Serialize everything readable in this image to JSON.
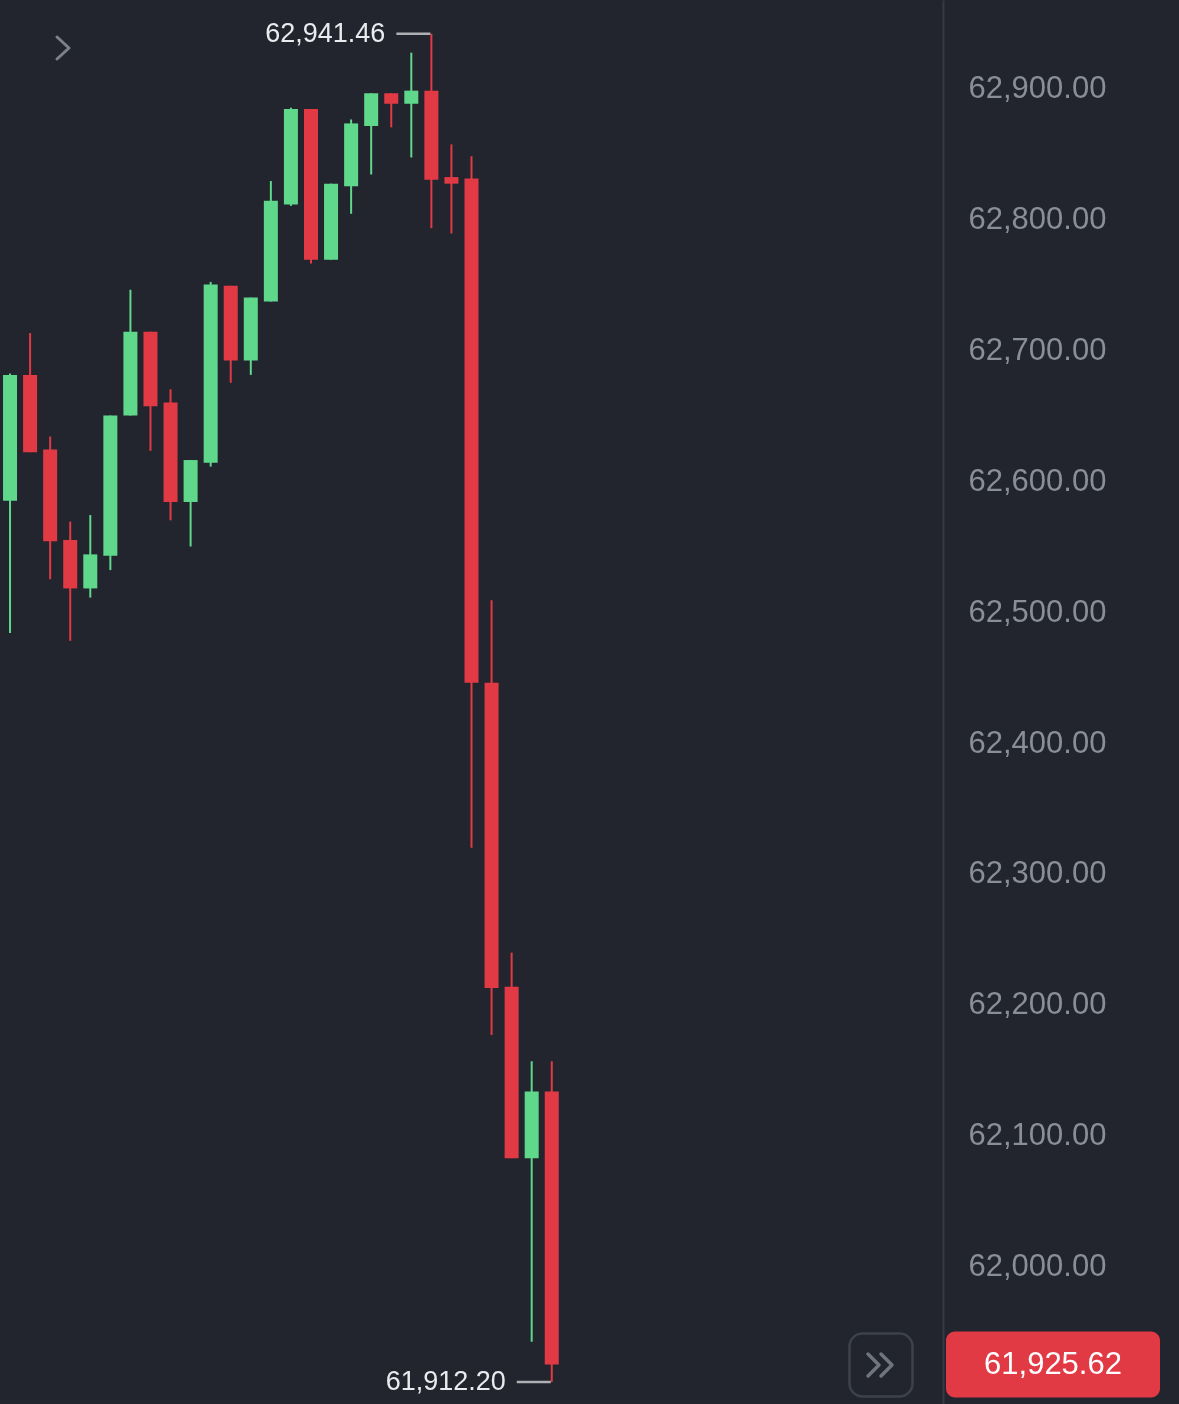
{
  "chart_data": {
    "type": "candlestick",
    "categories": [
      null,
      null,
      null,
      null,
      null,
      null,
      null,
      null,
      null,
      null,
      null,
      null,
      null,
      null,
      null,
      null,
      null,
      null,
      null,
      null,
      null,
      null,
      null,
      null,
      null,
      null,
      null,
      null,
      null,
      null,
      null,
      null,
      null,
      null,
      null,
      null,
      null,
      null,
      null,
      null,
      null,
      null,
      null,
      null,
      null,
      null,
      null
    ],
    "ohlc": [
      [
        62585,
        62682,
        62484,
        62681
      ],
      [
        62681,
        62713,
        62622,
        62622
      ],
      [
        62624,
        62634,
        62525,
        62554
      ],
      [
        62555,
        62569,
        62478,
        62518
      ],
      [
        62518,
        62574,
        62511,
        62544
      ],
      [
        62543,
        62650,
        62532,
        62650
      ],
      [
        62650,
        62746,
        62650,
        62714
      ],
      [
        62714,
        62714,
        62623,
        62657
      ],
      [
        62660,
        62670,
        62570,
        62584
      ],
      [
        62584,
        62616,
        62550,
        62616
      ],
      [
        62614,
        62752,
        62611,
        62750
      ],
      [
        62749,
        62749,
        62675,
        62692
      ],
      [
        62692,
        62740,
        62681,
        62740
      ],
      [
        62737,
        62829,
        62737,
        62814
      ],
      [
        62811,
        62885,
        62810,
        62884
      ],
      [
        62884,
        62884,
        62766,
        62769
      ],
      [
        62769,
        62827,
        62769,
        62827
      ],
      [
        62825,
        62876,
        62804,
        62873
      ],
      [
        62871,
        62896,
        62834,
        62896
      ],
      [
        62896,
        62896,
        62870,
        62888
      ],
      [
        62888,
        62927,
        62847,
        62898
      ],
      [
        62898,
        62941.46,
        62793,
        62830
      ],
      [
        62832,
        62857,
        62789,
        62827
      ],
      [
        62831,
        62848,
        62320,
        62446
      ],
      [
        62446,
        62509,
        62177,
        62213
      ],
      [
        62214,
        62240,
        62083,
        62083
      ],
      [
        62083,
        62157,
        61943,
        62134
      ],
      [
        62134,
        62157,
        61912.2,
        61925.62
      ],
      null,
      null,
      null,
      null,
      null,
      null,
      null,
      null,
      null,
      null,
      null,
      null,
      null,
      null,
      null,
      null,
      null,
      null,
      null
    ],
    "colors": [
      "#5fd88c",
      "#e23a45",
      "#e23a45",
      "#e23a45",
      "#5fd88c",
      "#5fd88c",
      "#5fd88c",
      "#e23a45",
      "#e23a45",
      "#5fd88c",
      "#5fd88c",
      "#e23a45",
      "#5fd88c",
      "#5fd88c",
      "#5fd88c",
      "#e23a45",
      "#5fd88c",
      "#5fd88c",
      "#5fd88c",
      "#e23a45",
      "#5fd88c",
      "#e23a45",
      "#e23a45",
      "#e23a45",
      "#e23a45",
      "#e23a45",
      "#5fd88c",
      "#e23a45",
      null,
      null,
      null,
      null,
      null,
      null,
      null,
      null,
      null,
      null,
      null,
      null,
      null,
      null,
      null,
      null,
      null,
      null,
      null
    ],
    "ylim": [
      61895.4,
      62967.2
    ],
    "yticks": [
      {
        "value": 62000,
        "label": "62,000.00"
      },
      {
        "value": 62100,
        "label": "62,100.00"
      },
      {
        "value": 62200,
        "label": "62,200.00"
      },
      {
        "value": 62300,
        "label": "62,300.00"
      },
      {
        "value": 62400,
        "label": "62,400.00"
      },
      {
        "value": 62500,
        "label": "62,500.00"
      },
      {
        "value": 62600,
        "label": "62,600.00"
      },
      {
        "value": 62700,
        "label": "62,700.00"
      },
      {
        "value": 62800,
        "label": "62,800.00"
      },
      {
        "value": 62900,
        "label": "62,900.00"
      }
    ],
    "tick_labels": "y",
    "annotations": [
      "62,941.46",
      "61,912.20",
      "61,925.62"
    ]
  }
}
